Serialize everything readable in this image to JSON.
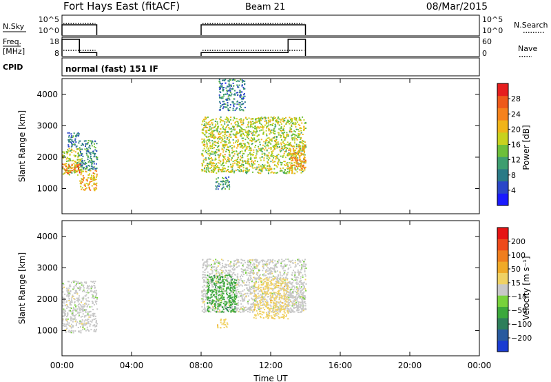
{
  "header": {
    "station": "Fort Hays East (fitACF)",
    "beam": "Beam 21",
    "date": "08/Mar/2015"
  },
  "noise_panel": {
    "left_label": "N.Sky",
    "right_label": "N.Search",
    "left_ticks": [
      "10^5",
      "10^0"
    ],
    "right_ticks": [
      "10^5",
      "10^0"
    ]
  },
  "freq_panel": {
    "left_label_top": "Freq.",
    "left_label_bottom": "[MHz]",
    "right_label": "Nave",
    "left_ticks": [
      "18",
      "8"
    ],
    "right_ticks": [
      "60",
      "0"
    ]
  },
  "cpid_panel": {
    "label": "CPID",
    "mode": "normal (fast) 151 IF"
  },
  "chart_data": [
    {
      "type": "heatmap",
      "name": "power",
      "ylabel": "Slant Range [km]",
      "y_ticks": [
        "1000",
        "2000",
        "3000",
        "4000"
      ],
      "ylim": [
        200,
        4500
      ],
      "colorbar_label": "Power [dB]",
      "colorbar_ticks": [
        "4",
        "8",
        "12",
        "16",
        "20",
        "24",
        "28"
      ],
      "colorbar_colors": [
        "#1a1aff",
        "#2a46c8",
        "#2a7a86",
        "#3e9e70",
        "#6dbf3a",
        "#c8d21e",
        "#f0b418",
        "#f5821c",
        "#ee5a1a",
        "#e61e1e"
      ],
      "regions": [
        {
          "t": [
            0.0,
            1.1
          ],
          "r": [
            1450,
            2300
          ],
          "v": 0.55
        },
        {
          "t": [
            0.0,
            1.1
          ],
          "r": [
            1500,
            1800
          ],
          "v": 0.8
        },
        {
          "t": [
            0.3,
            1.0
          ],
          "r": [
            2300,
            2800
          ],
          "v": 0.25
        },
        {
          "t": [
            1.0,
            2.0
          ],
          "r": [
            950,
            1600
          ],
          "v": 0.7
        },
        {
          "t": [
            1.0,
            2.0
          ],
          "r": [
            1600,
            2550
          ],
          "v": 0.3
        },
        {
          "t": [
            8.0,
            14.0
          ],
          "r": [
            1500,
            3300
          ],
          "v": 0.55
        },
        {
          "t": [
            8.8,
            9.6
          ],
          "r": [
            1000,
            1400
          ],
          "v": 0.3
        },
        {
          "t": [
            9.0,
            10.5
          ],
          "r": [
            3500,
            4500
          ],
          "v": 0.25
        },
        {
          "t": [
            13.0,
            14.0
          ],
          "r": [
            1600,
            2400
          ],
          "v": 0.7
        }
      ]
    },
    {
      "type": "heatmap",
      "name": "velocity",
      "ylabel": "Slant Range [km]",
      "y_ticks": [
        "1000",
        "2000",
        "3000",
        "4000"
      ],
      "ylim": [
        200,
        4500
      ],
      "colorbar_label": "Velocity [m s⁻¹]",
      "colorbar_ticks": [
        "200",
        "100",
        "50",
        "15",
        "−15",
        "−50",
        "−100",
        "−200"
      ],
      "colorbar_colors": [
        "#1a3cd2",
        "#285a9e",
        "#2e7e5a",
        "#3ca83c",
        "#78d23c",
        "#c8c8c8",
        "#f0d264",
        "#f0aa28",
        "#f07e1e",
        "#ee4a1a",
        "#e61414"
      ],
      "regions": [
        {
          "t": [
            0.0,
            2.0
          ],
          "r": [
            950,
            2600
          ],
          "v": 0
        },
        {
          "t": [
            8.0,
            14.0
          ],
          "r": [
            1600,
            3300
          ],
          "v": 0
        },
        {
          "t": [
            8.3,
            10.0
          ],
          "r": [
            1600,
            2800
          ],
          "v": -50
        },
        {
          "t": [
            11.0,
            13.0
          ],
          "r": [
            1400,
            2700
          ],
          "v": 50
        },
        {
          "t": [
            8.9,
            9.5
          ],
          "r": [
            1100,
            1400
          ],
          "v": 50
        },
        {
          "t": [
            13.0,
            14.0
          ],
          "r": [
            1600,
            2400
          ],
          "v": 0
        }
      ]
    }
  ],
  "x_axis": {
    "label": "Time UT",
    "ticks": [
      "00:00",
      "04:00",
      "08:00",
      "12:00",
      "16:00",
      "20:00",
      "00:00"
    ],
    "range_hours": [
      0,
      24
    ]
  },
  "traces": {
    "nsky_segments": [
      [
        0.0,
        2.0
      ],
      [
        8.0,
        14.0
      ]
    ],
    "freq_segments": [
      {
        "t": [
          0.0,
          1.0
        ],
        "mhz": 18
      },
      {
        "t": [
          1.0,
          2.0
        ],
        "mhz": 10
      },
      {
        "t": [
          8.0,
          13.0
        ],
        "mhz": 10
      },
      {
        "t": [
          13.0,
          14.0
        ],
        "mhz": 18
      }
    ]
  }
}
